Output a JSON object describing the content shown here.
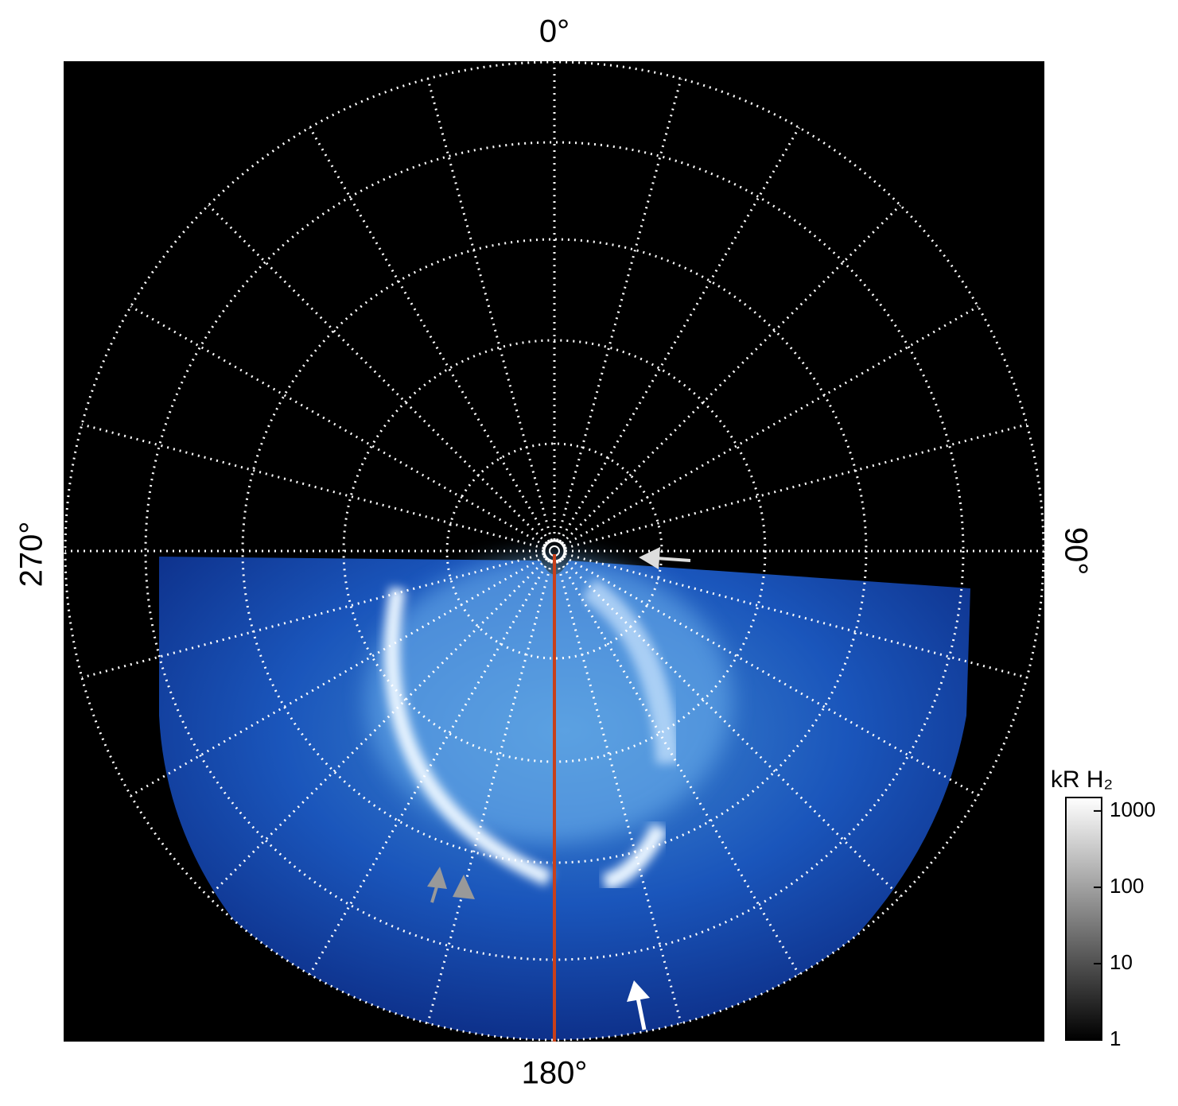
{
  "labels": {
    "top": "0°",
    "right": "90°",
    "bottom": "180°",
    "left": "270°"
  },
  "colorbar": {
    "title": "kR H₂",
    "ticks": [
      1,
      10,
      100,
      1000
    ],
    "lim": [
      1,
      1500
    ],
    "log": true
  }
}
